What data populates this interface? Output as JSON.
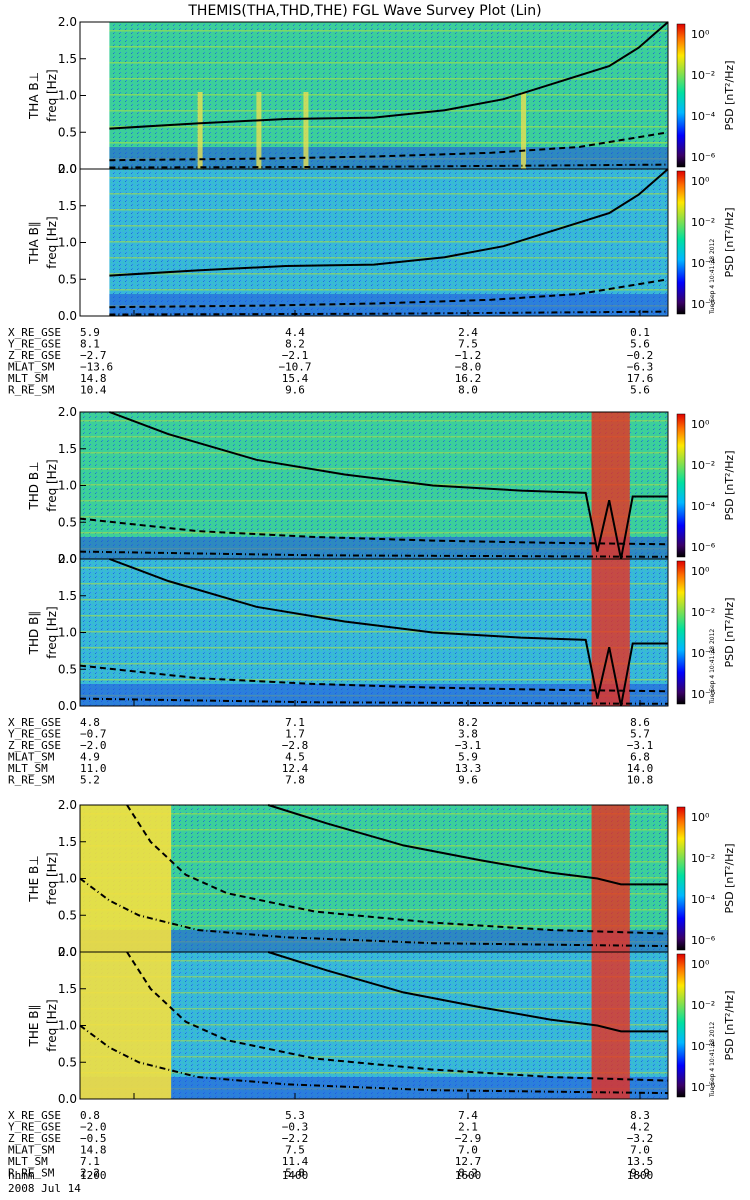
{
  "title": "THEMIS(THA,THD,THE) FGL Wave Survey Plot (Lin)",
  "chart_data": {
    "type": "heatmap",
    "freq_label": "freq [Hz]",
    "freq_ticks": [
      "0.0",
      "0.5",
      "1.0",
      "1.5",
      "2.0"
    ],
    "ylim": [
      0,
      2.0
    ],
    "colorbar_label": "PSD [nT²/Hz]",
    "colorbar_ticks": [
      "10⁰",
      "10⁻²",
      "10⁻⁴",
      "10⁻⁶"
    ],
    "colorbar_exponents": [
      0,
      -2,
      -4,
      -6
    ],
    "stamp": "Tue Sep  4 10:41:38 2012",
    "x_ticks": [
      "1200",
      "1400",
      "1600",
      "1800"
    ],
    "time_row_label": "hhmm",
    "date_label": "2008 Jul 14",
    "probes": [
      {
        "name": "THA",
        "panels": [
          {
            "label": "THA B⊥"
          },
          {
            "label": "THA B∥"
          }
        ],
        "fill_start": 0.05,
        "solid_curve": [
          [
            0.05,
            0.55
          ],
          [
            0.2,
            0.62
          ],
          [
            0.35,
            0.68
          ],
          [
            0.5,
            0.7
          ],
          [
            0.62,
            0.8
          ],
          [
            0.72,
            0.95
          ],
          [
            0.82,
            1.2
          ],
          [
            0.9,
            1.4
          ],
          [
            0.95,
            1.65
          ],
          [
            1.0,
            2.0
          ]
        ],
        "dashed_curve": [
          [
            0.05,
            0.12
          ],
          [
            0.3,
            0.14
          ],
          [
            0.5,
            0.17
          ],
          [
            0.7,
            0.22
          ],
          [
            0.85,
            0.3
          ],
          [
            1.0,
            0.5
          ]
        ],
        "dashdot_curve": [
          [
            0.05,
            0.02
          ],
          [
            0.5,
            0.03
          ],
          [
            1.0,
            0.06
          ]
        ],
        "ephem": [
          {
            "label": "X_RE_GSE",
            "values": [
              "5.9",
              "4.4",
              "2.4",
              "0.1"
            ]
          },
          {
            "label": "Y_RE_GSE",
            "values": [
              "8.1",
              "8.2",
              "7.5",
              "5.6"
            ]
          },
          {
            "label": "Z_RE_GSE",
            "values": [
              "−2.7",
              "−2.1",
              "−1.2",
              "−0.2"
            ]
          },
          {
            "label": "MLAT_SM",
            "values": [
              "−13.6",
              "−10.7",
              "−8.0",
              "−6.3"
            ]
          },
          {
            "label": "MLT_SM",
            "values": [
              "14.8",
              "15.4",
              "16.2",
              "17.6"
            ]
          },
          {
            "label": "R_RE_SM",
            "values": [
              "10.4",
              "9.6",
              "8.0",
              "5.6"
            ]
          }
        ]
      },
      {
        "name": "THD",
        "panels": [
          {
            "label": "THD B⊥"
          },
          {
            "label": "THD B∥"
          }
        ],
        "fill_start": 0.0,
        "solid_curve": [
          [
            0.05,
            2.0
          ],
          [
            0.15,
            1.7
          ],
          [
            0.3,
            1.35
          ],
          [
            0.45,
            1.15
          ],
          [
            0.6,
            1.0
          ],
          [
            0.75,
            0.93
          ],
          [
            0.86,
            0.9
          ],
          [
            0.88,
            0.1
          ],
          [
            0.9,
            0.8
          ],
          [
            0.92,
            0.0
          ],
          [
            0.94,
            0.85
          ],
          [
            1.0,
            0.85
          ]
        ],
        "dashed_curve": [
          [
            0.0,
            0.55
          ],
          [
            0.2,
            0.38
          ],
          [
            0.4,
            0.3
          ],
          [
            0.6,
            0.25
          ],
          [
            0.8,
            0.22
          ],
          [
            1.0,
            0.2
          ]
        ],
        "dashdot_curve": [
          [
            0.0,
            0.1
          ],
          [
            0.4,
            0.05
          ],
          [
            1.0,
            0.03
          ]
        ],
        "ephem": [
          {
            "label": "X_RE_GSE",
            "values": [
              "4.8",
              "7.1",
              "8.2",
              "8.6"
            ]
          },
          {
            "label": "Y_RE_GSE",
            "values": [
              "−0.7",
              "1.7",
              "3.8",
              "5.7"
            ]
          },
          {
            "label": "Z_RE_GSE",
            "values": [
              "−2.0",
              "−2.8",
              "−3.1",
              "−3.1"
            ]
          },
          {
            "label": "MLAT_SM",
            "values": [
              "4.9",
              "4.5",
              "5.9",
              "6.8"
            ]
          },
          {
            "label": "MLT_SM",
            "values": [
              "11.0",
              "12.4",
              "13.3",
              "14.0"
            ]
          },
          {
            "label": "R_RE_SM",
            "values": [
              "5.2",
              "7.8",
              "9.6",
              "10.8"
            ]
          }
        ]
      },
      {
        "name": "THE",
        "panels": [
          {
            "label": "THE B⊥"
          },
          {
            "label": "THE B∥"
          }
        ],
        "fill_start": 0.0,
        "solid_curve": [
          [
            0.32,
            2.0
          ],
          [
            0.42,
            1.75
          ],
          [
            0.55,
            1.45
          ],
          [
            0.68,
            1.25
          ],
          [
            0.8,
            1.08
          ],
          [
            0.88,
            1.0
          ],
          [
            0.92,
            0.92
          ],
          [
            1.0,
            0.92
          ]
        ],
        "dashed_curve": [
          [
            0.08,
            2.0
          ],
          [
            0.12,
            1.5
          ],
          [
            0.18,
            1.05
          ],
          [
            0.25,
            0.8
          ],
          [
            0.4,
            0.55
          ],
          [
            0.6,
            0.4
          ],
          [
            0.8,
            0.3
          ],
          [
            1.0,
            0.25
          ]
        ],
        "dashdot_curve": [
          [
            0.0,
            1.0
          ],
          [
            0.05,
            0.7
          ],
          [
            0.1,
            0.5
          ],
          [
            0.2,
            0.3
          ],
          [
            0.35,
            0.2
          ],
          [
            0.6,
            0.12
          ],
          [
            1.0,
            0.08
          ]
        ],
        "ephem": [
          {
            "label": "X_RE_GSE",
            "values": [
              "0.8",
              "5.3",
              "7.4",
              "8.3"
            ]
          },
          {
            "label": "Y_RE_GSE",
            "values": [
              "−2.0",
              "−0.3",
              "2.1",
              "4.2"
            ]
          },
          {
            "label": "Z_RE_GSE",
            "values": [
              "−0.5",
              "−2.2",
              "−2.9",
              "−3.2"
            ]
          },
          {
            "label": "MLAT_SM",
            "values": [
              "14.8",
              "7.5",
              "7.0",
              "7.0"
            ]
          },
          {
            "label": "MLT_SM",
            "values": [
              "7.1",
              "11.4",
              "12.7",
              "13.5"
            ]
          },
          {
            "label": "R_RE_SM",
            "values": [
              "2.2",
              "5.8",
              "8.2",
              "9.9"
            ]
          }
        ]
      }
    ]
  }
}
